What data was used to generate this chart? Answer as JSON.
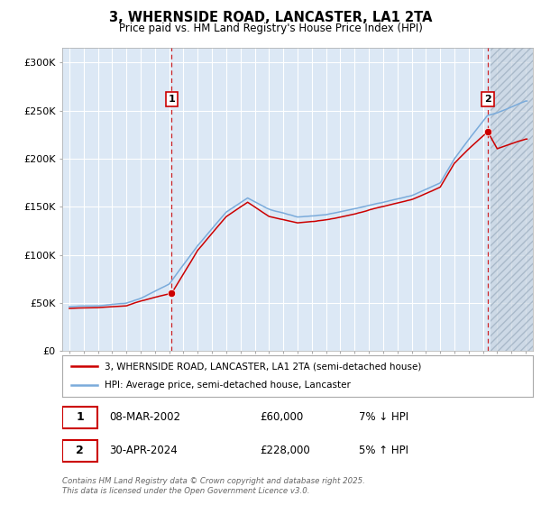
{
  "title": "3, WHERNSIDE ROAD, LANCASTER, LA1 2TA",
  "subtitle": "Price paid vs. HM Land Registry's House Price Index (HPI)",
  "ylabel_ticks": [
    "£0",
    "£50K",
    "£100K",
    "£150K",
    "£200K",
    "£250K",
    "£300K"
  ],
  "ytick_vals": [
    0,
    50000,
    100000,
    150000,
    200000,
    250000,
    300000
  ],
  "ylim": [
    0,
    315000
  ],
  "xlim_start": 1994.5,
  "xlim_end": 2027.5,
  "sale1_x": 2002.18,
  "sale1_y": 60000,
  "sale1_label": "1",
  "sale2_x": 2024.33,
  "sale2_y": 228000,
  "sale2_label": "2",
  "red_color": "#cc0000",
  "blue_color": "#7aabdb",
  "legend_entry1": "3, WHERNSIDE ROAD, LANCASTER, LA1 2TA (semi-detached house)",
  "legend_entry2": "HPI: Average price, semi-detached house, Lancaster",
  "table_row1": [
    "1",
    "08-MAR-2002",
    "£60,000",
    "7% ↓ HPI"
  ],
  "table_row2": [
    "2",
    "30-APR-2024",
    "£228,000",
    "5% ↑ HPI"
  ],
  "footer": "Contains HM Land Registry data © Crown copyright and database right 2025.\nThis data is licensed under the Open Government Licence v3.0.",
  "bg_color": "#ffffff",
  "plot_bg_color": "#dce8f5",
  "grid_color": "#ffffff",
  "hatch_color": "#c8d4e0"
}
